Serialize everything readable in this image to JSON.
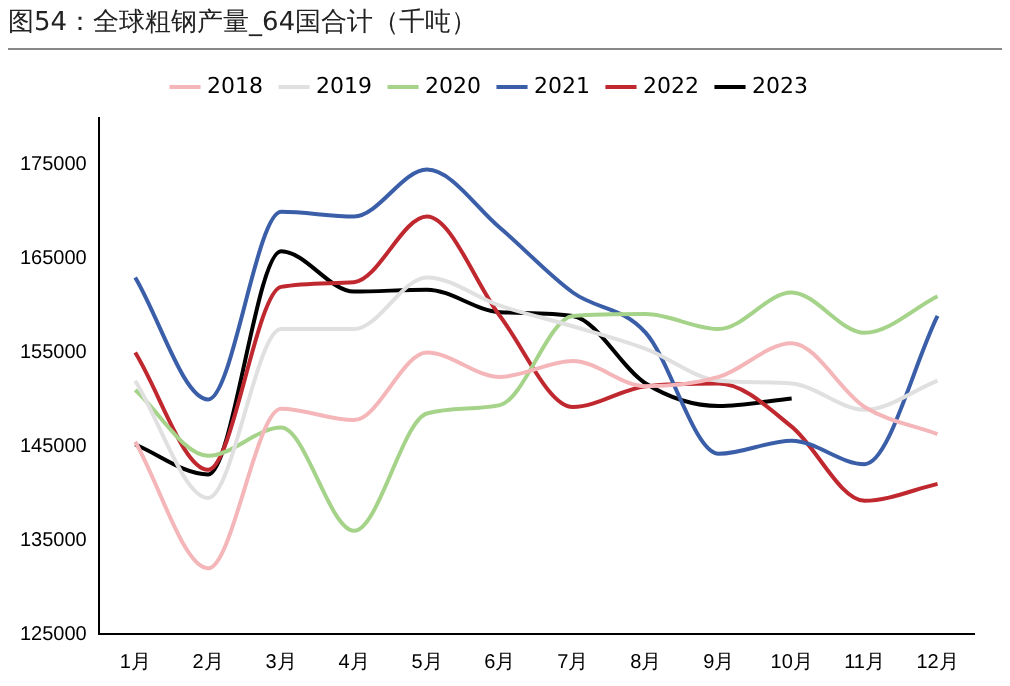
{
  "chart_data": {
    "type": "line",
    "title": "图54：全球粗钢产量_64国合计（千吨）",
    "categories": [
      "1月",
      "2月",
      "3月",
      "4月",
      "5月",
      "6月",
      "7月",
      "8月",
      "9月",
      "10月",
      "11月",
      "12月"
    ],
    "series": [
      {
        "name": "2018",
        "color": "#f4b6b8",
        "values": [
          145500,
          132000,
          149000,
          147800,
          155000,
          152400,
          154100,
          151400,
          152400,
          156000,
          149200,
          146300
        ]
      },
      {
        "name": "2019",
        "color": "#e0e0e0",
        "values": [
          152000,
          139500,
          157500,
          157500,
          163000,
          160000,
          157800,
          155400,
          152000,
          151700,
          148900,
          152000
        ]
      },
      {
        "name": "2020",
        "color": "#a6d38a",
        "values": [
          151000,
          144000,
          147000,
          136000,
          148500,
          149400,
          158900,
          159100,
          157500,
          161400,
          157100,
          161000
        ]
      },
      {
        "name": "2021",
        "color": "#3a5ea8",
        "values": [
          163000,
          150000,
          170000,
          169500,
          174500,
          168300,
          161400,
          157100,
          144200,
          145600,
          143100,
          158900
        ]
      },
      {
        "name": "2022",
        "color": "#c0282f",
        "values": [
          155000,
          142500,
          162000,
          162500,
          169500,
          158900,
          149200,
          151400,
          151700,
          147100,
          139200,
          141000
        ]
      },
      {
        "name": "2023",
        "color": "#000000",
        "values": [
          145200,
          142000,
          165800,
          161500,
          161700,
          159300,
          158900,
          151700,
          149300,
          150100,
          null,
          null
        ]
      }
    ],
    "ylim": [
      125000,
      180000
    ],
    "yticks": [
      125000,
      135000,
      145000,
      155000,
      165000,
      175000
    ],
    "grid": false,
    "legend": "top",
    "marker": "none",
    "line_style": "solid"
  }
}
